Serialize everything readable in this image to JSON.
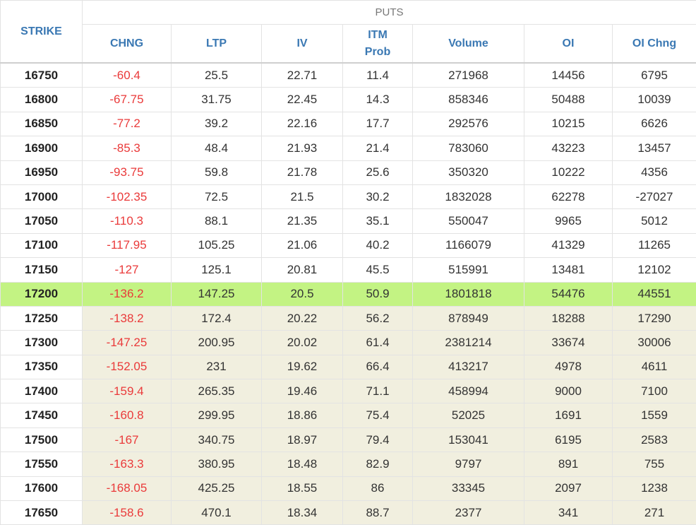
{
  "header": {
    "group_label": "PUTS",
    "columns": {
      "strike": "STRIKE",
      "chng": "CHNG",
      "ltp": "LTP",
      "iv": "IV",
      "itm_line1": "ITM",
      "itm_line2": "Prob",
      "volume": "Volume",
      "oi": "OI",
      "oi_chng": "OI Chng"
    }
  },
  "colors": {
    "header_text": "#3a78b3",
    "negative_change": "#ea3a3a",
    "atm_row_highlight": "#c3f383",
    "itm_row_shade": "#f1efdf"
  },
  "rows": [
    {
      "strike": "16750",
      "chng": "-60.4",
      "ltp": "25.5",
      "iv": "22.71",
      "itm_prob": "11.4",
      "volume": "271968",
      "oi": "14456",
      "oi_chng": "6795",
      "zone": "otm"
    },
    {
      "strike": "16800",
      "chng": "-67.75",
      "ltp": "31.75",
      "iv": "22.45",
      "itm_prob": "14.3",
      "volume": "858346",
      "oi": "50488",
      "oi_chng": "10039",
      "zone": "otm"
    },
    {
      "strike": "16850",
      "chng": "-77.2",
      "ltp": "39.2",
      "iv": "22.16",
      "itm_prob": "17.7",
      "volume": "292576",
      "oi": "10215",
      "oi_chng": "6626",
      "zone": "otm"
    },
    {
      "strike": "16900",
      "chng": "-85.3",
      "ltp": "48.4",
      "iv": "21.93",
      "itm_prob": "21.4",
      "volume": "783060",
      "oi": "43223",
      "oi_chng": "13457",
      "zone": "otm"
    },
    {
      "strike": "16950",
      "chng": "-93.75",
      "ltp": "59.8",
      "iv": "21.78",
      "itm_prob": "25.6",
      "volume": "350320",
      "oi": "10222",
      "oi_chng": "4356",
      "zone": "otm"
    },
    {
      "strike": "17000",
      "chng": "-102.35",
      "ltp": "72.5",
      "iv": "21.5",
      "itm_prob": "30.2",
      "volume": "1832028",
      "oi": "62278",
      "oi_chng": "-27027",
      "zone": "otm"
    },
    {
      "strike": "17050",
      "chng": "-110.3",
      "ltp": "88.1",
      "iv": "21.35",
      "itm_prob": "35.1",
      "volume": "550047",
      "oi": "9965",
      "oi_chng": "5012",
      "zone": "otm"
    },
    {
      "strike": "17100",
      "chng": "-117.95",
      "ltp": "105.25",
      "iv": "21.06",
      "itm_prob": "40.2",
      "volume": "1166079",
      "oi": "41329",
      "oi_chng": "11265",
      "zone": "otm"
    },
    {
      "strike": "17150",
      "chng": "-127",
      "ltp": "125.1",
      "iv": "20.81",
      "itm_prob": "45.5",
      "volume": "515991",
      "oi": "13481",
      "oi_chng": "12102",
      "zone": "otm"
    },
    {
      "strike": "17200",
      "chng": "-136.2",
      "ltp": "147.25",
      "iv": "20.5",
      "itm_prob": "50.9",
      "volume": "1801818",
      "oi": "54476",
      "oi_chng": "44551",
      "zone": "atm"
    },
    {
      "strike": "17250",
      "chng": "-138.2",
      "ltp": "172.4",
      "iv": "20.22",
      "itm_prob": "56.2",
      "volume": "878949",
      "oi": "18288",
      "oi_chng": "17290",
      "zone": "itm"
    },
    {
      "strike": "17300",
      "chng": "-147.25",
      "ltp": "200.95",
      "iv": "20.02",
      "itm_prob": "61.4",
      "volume": "2381214",
      "oi": "33674",
      "oi_chng": "30006",
      "zone": "itm"
    },
    {
      "strike": "17350",
      "chng": "-152.05",
      "ltp": "231",
      "iv": "19.62",
      "itm_prob": "66.4",
      "volume": "413217",
      "oi": "4978",
      "oi_chng": "4611",
      "zone": "itm"
    },
    {
      "strike": "17400",
      "chng": "-159.4",
      "ltp": "265.35",
      "iv": "19.46",
      "itm_prob": "71.1",
      "volume": "458994",
      "oi": "9000",
      "oi_chng": "7100",
      "zone": "itm"
    },
    {
      "strike": "17450",
      "chng": "-160.8",
      "ltp": "299.95",
      "iv": "18.86",
      "itm_prob": "75.4",
      "volume": "52025",
      "oi": "1691",
      "oi_chng": "1559",
      "zone": "itm"
    },
    {
      "strike": "17500",
      "chng": "-167",
      "ltp": "340.75",
      "iv": "18.97",
      "itm_prob": "79.4",
      "volume": "153041",
      "oi": "6195",
      "oi_chng": "2583",
      "zone": "itm"
    },
    {
      "strike": "17550",
      "chng": "-163.3",
      "ltp": "380.95",
      "iv": "18.48",
      "itm_prob": "82.9",
      "volume": "9797",
      "oi": "891",
      "oi_chng": "755",
      "zone": "itm"
    },
    {
      "strike": "17600",
      "chng": "-168.05",
      "ltp": "425.25",
      "iv": "18.55",
      "itm_prob": "86",
      "volume": "33345",
      "oi": "2097",
      "oi_chng": "1238",
      "zone": "itm"
    },
    {
      "strike": "17650",
      "chng": "-158.6",
      "ltp": "470.1",
      "iv": "18.34",
      "itm_prob": "88.7",
      "volume": "2377",
      "oi": "341",
      "oi_chng": "271",
      "zone": "itm"
    }
  ]
}
